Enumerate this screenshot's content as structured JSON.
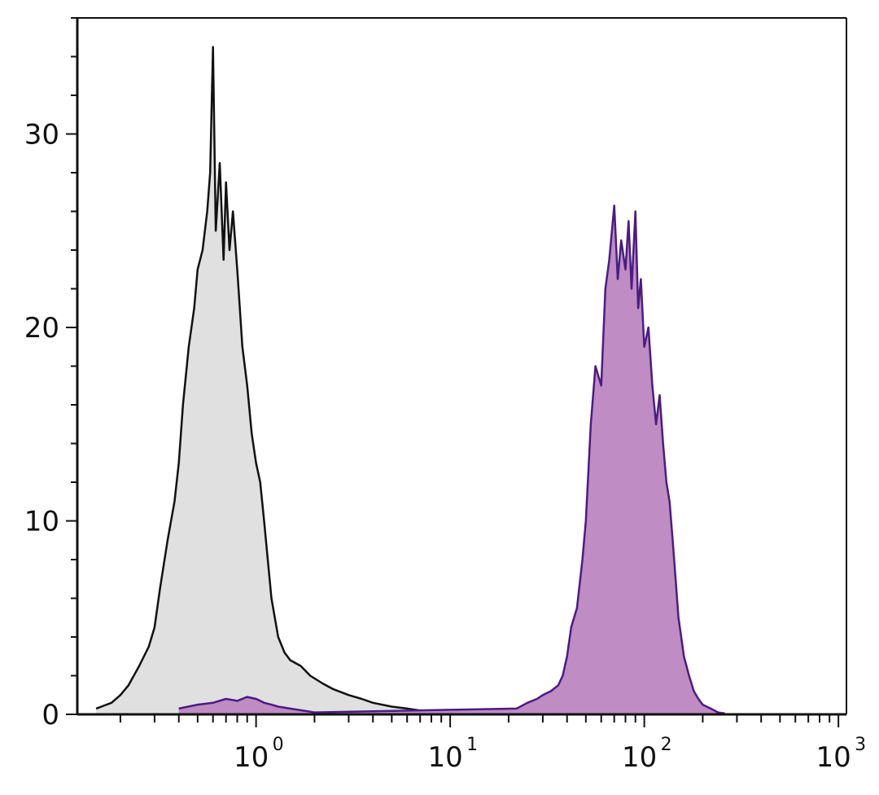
{
  "chart_data": {
    "type": "area",
    "title": "",
    "xlabel": "",
    "ylabel": "",
    "x_scale": "log",
    "xlim": [
      0.12,
      1100
    ],
    "ylim": [
      0,
      36
    ],
    "grid": false,
    "legend": "none",
    "y_ticks": [
      {
        "value": 0,
        "label": "0"
      },
      {
        "value": 10,
        "label": "10"
      },
      {
        "value": 20,
        "label": "20"
      },
      {
        "value": 30,
        "label": "30"
      }
    ],
    "x_ticks": [
      {
        "value": 1,
        "base": "10",
        "exp": "0"
      },
      {
        "value": 10,
        "base": "10",
        "exp": "1"
      },
      {
        "value": 100,
        "base": "10",
        "exp": "2"
      },
      {
        "value": 1000,
        "base": "10",
        "exp": "3"
      }
    ],
    "series": [
      {
        "color": "#111111",
        "fill": "#e0e0e0",
        "x": [
          0.15,
          0.18,
          0.2,
          0.22,
          0.25,
          0.28,
          0.3,
          0.32,
          0.35,
          0.38,
          0.4,
          0.42,
          0.45,
          0.48,
          0.5,
          0.53,
          0.56,
          0.58,
          0.6,
          0.62,
          0.65,
          0.68,
          0.7,
          0.73,
          0.76,
          0.8,
          0.85,
          0.9,
          0.95,
          1.0,
          1.05,
          1.1,
          1.2,
          1.3,
          1.4,
          1.5,
          1.7,
          1.9,
          2.2,
          2.5,
          3.0,
          3.5,
          4.0,
          5.0,
          6.0,
          7.0,
          8.0,
          10.0,
          12.0
        ],
        "y": [
          0.3,
          0.6,
          1.0,
          1.5,
          2.5,
          3.5,
          4.5,
          6.5,
          9.0,
          11.0,
          13.0,
          16.0,
          19.0,
          21.0,
          23.0,
          24.0,
          26.0,
          28.0,
          34.5,
          25.0,
          28.5,
          23.5,
          27.5,
          24.0,
          26.0,
          23.0,
          19.0,
          17.0,
          14.5,
          13.0,
          12.0,
          10.0,
          6.0,
          4.0,
          3.2,
          2.8,
          2.5,
          2.0,
          1.6,
          1.3,
          1.0,
          0.8,
          0.6,
          0.4,
          0.3,
          0.2,
          0.15,
          0.1,
          0.05
        ]
      },
      {
        "color": "#4b1c82",
        "fill": "#bf8cc3",
        "x": [
          0.4,
          0.5,
          0.6,
          0.7,
          0.8,
          0.9,
          1.0,
          1.1,
          1.2,
          1.3,
          1.5,
          2.0,
          22.0,
          25.0,
          28.0,
          30.0,
          33.0,
          36.0,
          38.0,
          40.0,
          42.0,
          45.0,
          48.0,
          50.0,
          53.0,
          56.0,
          60.0,
          63.0,
          66.0,
          70.0,
          73.0,
          76.0,
          80.0,
          83.0,
          86.0,
          90.0,
          93.0,
          96.0,
          100.0,
          105.0,
          110.0,
          115.0,
          120.0,
          125.0,
          130.0,
          135.0,
          140.0,
          145.0,
          150.0,
          155.0,
          160.0,
          170.0,
          180.0,
          190.0,
          200.0,
          220.0,
          240.0,
          260.0
        ],
        "y": [
          0.3,
          0.5,
          0.6,
          0.8,
          0.7,
          0.9,
          0.8,
          0.6,
          0.5,
          0.4,
          0.3,
          0.1,
          0.3,
          0.6,
          0.8,
          1.0,
          1.2,
          1.5,
          2.0,
          3.0,
          4.5,
          5.5,
          8.0,
          10.0,
          15.0,
          18.0,
          17.0,
          22.0,
          23.5,
          26.3,
          22.5,
          24.5,
          23.0,
          25.5,
          22.0,
          26.0,
          21.0,
          22.5,
          19.0,
          20.0,
          17.0,
          15.0,
          16.5,
          14.0,
          12.0,
          11.0,
          9.0,
          7.0,
          5.0,
          4.0,
          3.0,
          2.0,
          1.2,
          0.8,
          0.5,
          0.3,
          0.1,
          0.05
        ]
      }
    ]
  }
}
